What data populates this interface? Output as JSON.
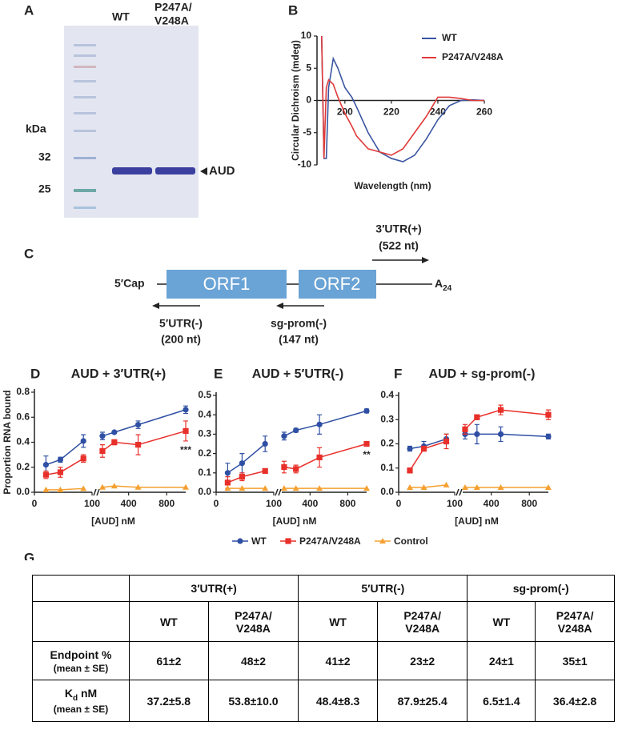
{
  "panel_a": {
    "letter": "A",
    "lane_1": "WT",
    "lane_2": [
      "P247A/",
      "V248A"
    ],
    "unit": "kDa",
    "markers": [
      32,
      25
    ],
    "band_label": "AUD"
  },
  "panel_c": {
    "letter": "C",
    "five_cap": "5′Cap",
    "orfs": [
      "ORF1",
      "ORF2"
    ],
    "poly_a": [
      "A",
      "24"
    ],
    "probes": [
      {
        "name": "3′UTR(+)",
        "length": "(522 nt)"
      },
      {
        "name": "5′UTR(-)",
        "length": "(200 nt)"
      },
      {
        "name": "sg-prom(-)",
        "length": "(147 nt)"
      }
    ]
  },
  "chart_data": [
    {
      "type": "line",
      "panel": "B",
      "ylabel": "Circular Dichroism (mdeg)",
      "xlabel": "Wavelength (nm)",
      "x": [
        190,
        191,
        192,
        193,
        195,
        197,
        200,
        203,
        205,
        210,
        215,
        220,
        225,
        230,
        235,
        240,
        245,
        250,
        255,
        260
      ],
      "series": [
        {
          "name": "WT",
          "color": "#3a55a0",
          "values": [
            10,
            -9,
            -9,
            2,
            6.5,
            5,
            2,
            0.5,
            -1,
            -5,
            -8,
            -9,
            -9.5,
            -8.5,
            -6,
            -3,
            -0.8,
            0,
            0.1,
            0
          ]
        },
        {
          "name": "P247A/V248A",
          "color": "#e03a3a",
          "values": [
            10,
            -9,
            2,
            3.2,
            2.5,
            0.5,
            -2,
            -4,
            -5.5,
            -7.5,
            -8,
            -8.5,
            -7.5,
            -5,
            -2.5,
            0.5,
            0.5,
            0.3,
            0,
            0
          ]
        }
      ],
      "xlim": [
        188,
        260
      ],
      "ylim": [
        -10,
        10
      ],
      "xticks": [
        200,
        220,
        240,
        260
      ],
      "yticks": [
        -10,
        -5,
        0,
        5,
        10
      ],
      "legend": "upper right"
    },
    {
      "type": "scatter",
      "panel": "D",
      "title": "AUD + 3′UTR(+)",
      "ylabel": "Proportion RNA bound",
      "xlabel": "[AUD] nM",
      "x": [
        20,
        45,
        85,
        125,
        250,
        500,
        1000
      ],
      "x_segments": [
        {
          "xlim": [
            0,
            100
          ],
          "xticks": [
            0,
            100
          ]
        },
        {
          "xlim": [
            100,
            1000
          ],
          "xticks": [
            400,
            800
          ]
        }
      ],
      "ylim": [
        0,
        0.8
      ],
      "yticks": [
        {
          "value": 0,
          "label": "0.0"
        },
        0.2,
        0.4,
        0.6,
        0.8
      ],
      "series": [
        {
          "color": "#2e4fa3",
          "marker": "circle",
          "values": [
            0.22,
            0.26,
            0.41,
            0.45,
            0.48,
            0.54,
            0.66
          ],
          "errors": [
            0.07,
            0.02,
            0.05,
            0.03,
            0.01,
            0.03,
            0.03
          ]
        },
        {
          "color": "#e8302a",
          "marker": "square",
          "values": [
            0.14,
            0.16,
            0.27,
            0.33,
            0.4,
            0.38,
            0.49
          ],
          "errors": [
            0.03,
            0.04,
            0.03,
            0.05,
            0.02,
            0.08,
            0.08
          ]
        },
        {
          "color": "#f5a030",
          "marker": "triangle",
          "values": [
            0.02,
            0.02,
            0.03,
            0.04,
            0.05,
            0.04,
            0.04
          ]
        }
      ],
      "annotation": "***"
    },
    {
      "type": "scatter",
      "panel": "E",
      "title": "AUD + 5′UTR(-)",
      "xlabel": "[AUD] nM",
      "x": [
        20,
        45,
        85,
        125,
        250,
        500,
        1000
      ],
      "x_segments": [
        {
          "xlim": [
            0,
            100
          ],
          "xticks": [
            0,
            100
          ]
        },
        {
          "xlim": [
            100,
            1000
          ],
          "xticks": [
            400,
            800
          ]
        }
      ],
      "ylim": [
        0,
        0.5
      ],
      "yticks": [
        {
          "value": 0,
          "label": "0.0"
        },
        0.1,
        0.2,
        0.3,
        0.4,
        0.5
      ],
      "series": [
        {
          "name": "WT",
          "color": "#2e4fa3",
          "marker": "circle",
          "values": [
            0.1,
            0.15,
            0.25,
            0.29,
            0.32,
            0.35,
            0.42
          ],
          "errors": [
            0.05,
            0.05,
            0.04,
            0.02,
            0.01,
            0.05,
            0.01
          ]
        },
        {
          "name": "P247A/V248A",
          "color": "#e8302a",
          "marker": "square",
          "values": [
            0.05,
            0.08,
            0.11,
            0.13,
            0.12,
            0.18,
            0.25
          ],
          "errors": [
            0.03,
            0.02,
            0.01,
            0.03,
            0.02,
            0.05,
            0.01
          ]
        },
        {
          "name": "Control",
          "color": "#f5a030",
          "marker": "triangle",
          "values": [
            0.02,
            0.02,
            0.02,
            0.02,
            0.02,
            0.02,
            0.02
          ]
        }
      ],
      "annotation": "**"
    },
    {
      "type": "scatter",
      "panel": "F",
      "title": "AUD + sg-prom(-)",
      "xlabel": "[AUD] nM",
      "x": [
        20,
        45,
        85,
        125,
        250,
        500,
        1000
      ],
      "x_segments": [
        {
          "xlim": [
            0,
            100
          ],
          "xticks": [
            0,
            100
          ]
        },
        {
          "xlim": [
            100,
            1000
          ],
          "xticks": [
            400,
            800
          ]
        }
      ],
      "ylim": [
        0,
        0.4
      ],
      "yticks": [
        {
          "value": 0,
          "label": "0.0"
        },
        0.1,
        0.2,
        0.3,
        0.4
      ],
      "series": [
        {
          "color": "#2e4fa3",
          "marker": "circle",
          "values": [
            0.18,
            0.19,
            0.22,
            0.24,
            0.24,
            0.24,
            0.23
          ],
          "errors": [
            0.01,
            0.02,
            0.02,
            0.02,
            0.04,
            0.03,
            0.01
          ]
        },
        {
          "color": "#e8302a",
          "marker": "square",
          "values": [
            0.09,
            0.18,
            0.21,
            0.26,
            0.31,
            0.34,
            0.32
          ],
          "errors": [
            0.01,
            0.01,
            0.03,
            0.02,
            0.01,
            0.02,
            0.02
          ]
        },
        {
          "color": "#f5a030",
          "marker": "triangle",
          "values": [
            0.02,
            0.02,
            0.03,
            0.02,
            0.02,
            0.02,
            0.02
          ]
        }
      ]
    }
  ],
  "table": {
    "letter": "G",
    "groups": [
      "3′UTR(+)",
      "5′UTR(-)",
      "sg-prom(-)"
    ],
    "subheaders": [
      [
        "WT"
      ],
      [
        "P247A/",
        "V248A"
      ],
      [
        "WT"
      ],
      [
        "P247A/",
        "V248A"
      ],
      [
        "WT"
      ],
      [
        "P247A/",
        "V248A"
      ]
    ],
    "rows": [
      {
        "label": [
          "Endpoint %"
        ],
        "note": "(mean ± SE)",
        "cells": [
          "61±2",
          "48±2",
          "41±2",
          "23±2",
          "24±1",
          "35±1"
        ]
      },
      {
        "label": [
          "K",
          "d",
          " nM"
        ],
        "note": "(mean ± SE)",
        "cells": [
          "37.2±5.8",
          "53.8±10.0",
          "48.4±8.3",
          "87.9±25.4",
          "6.5±1.4",
          "36.4±2.8"
        ]
      }
    ]
  }
}
